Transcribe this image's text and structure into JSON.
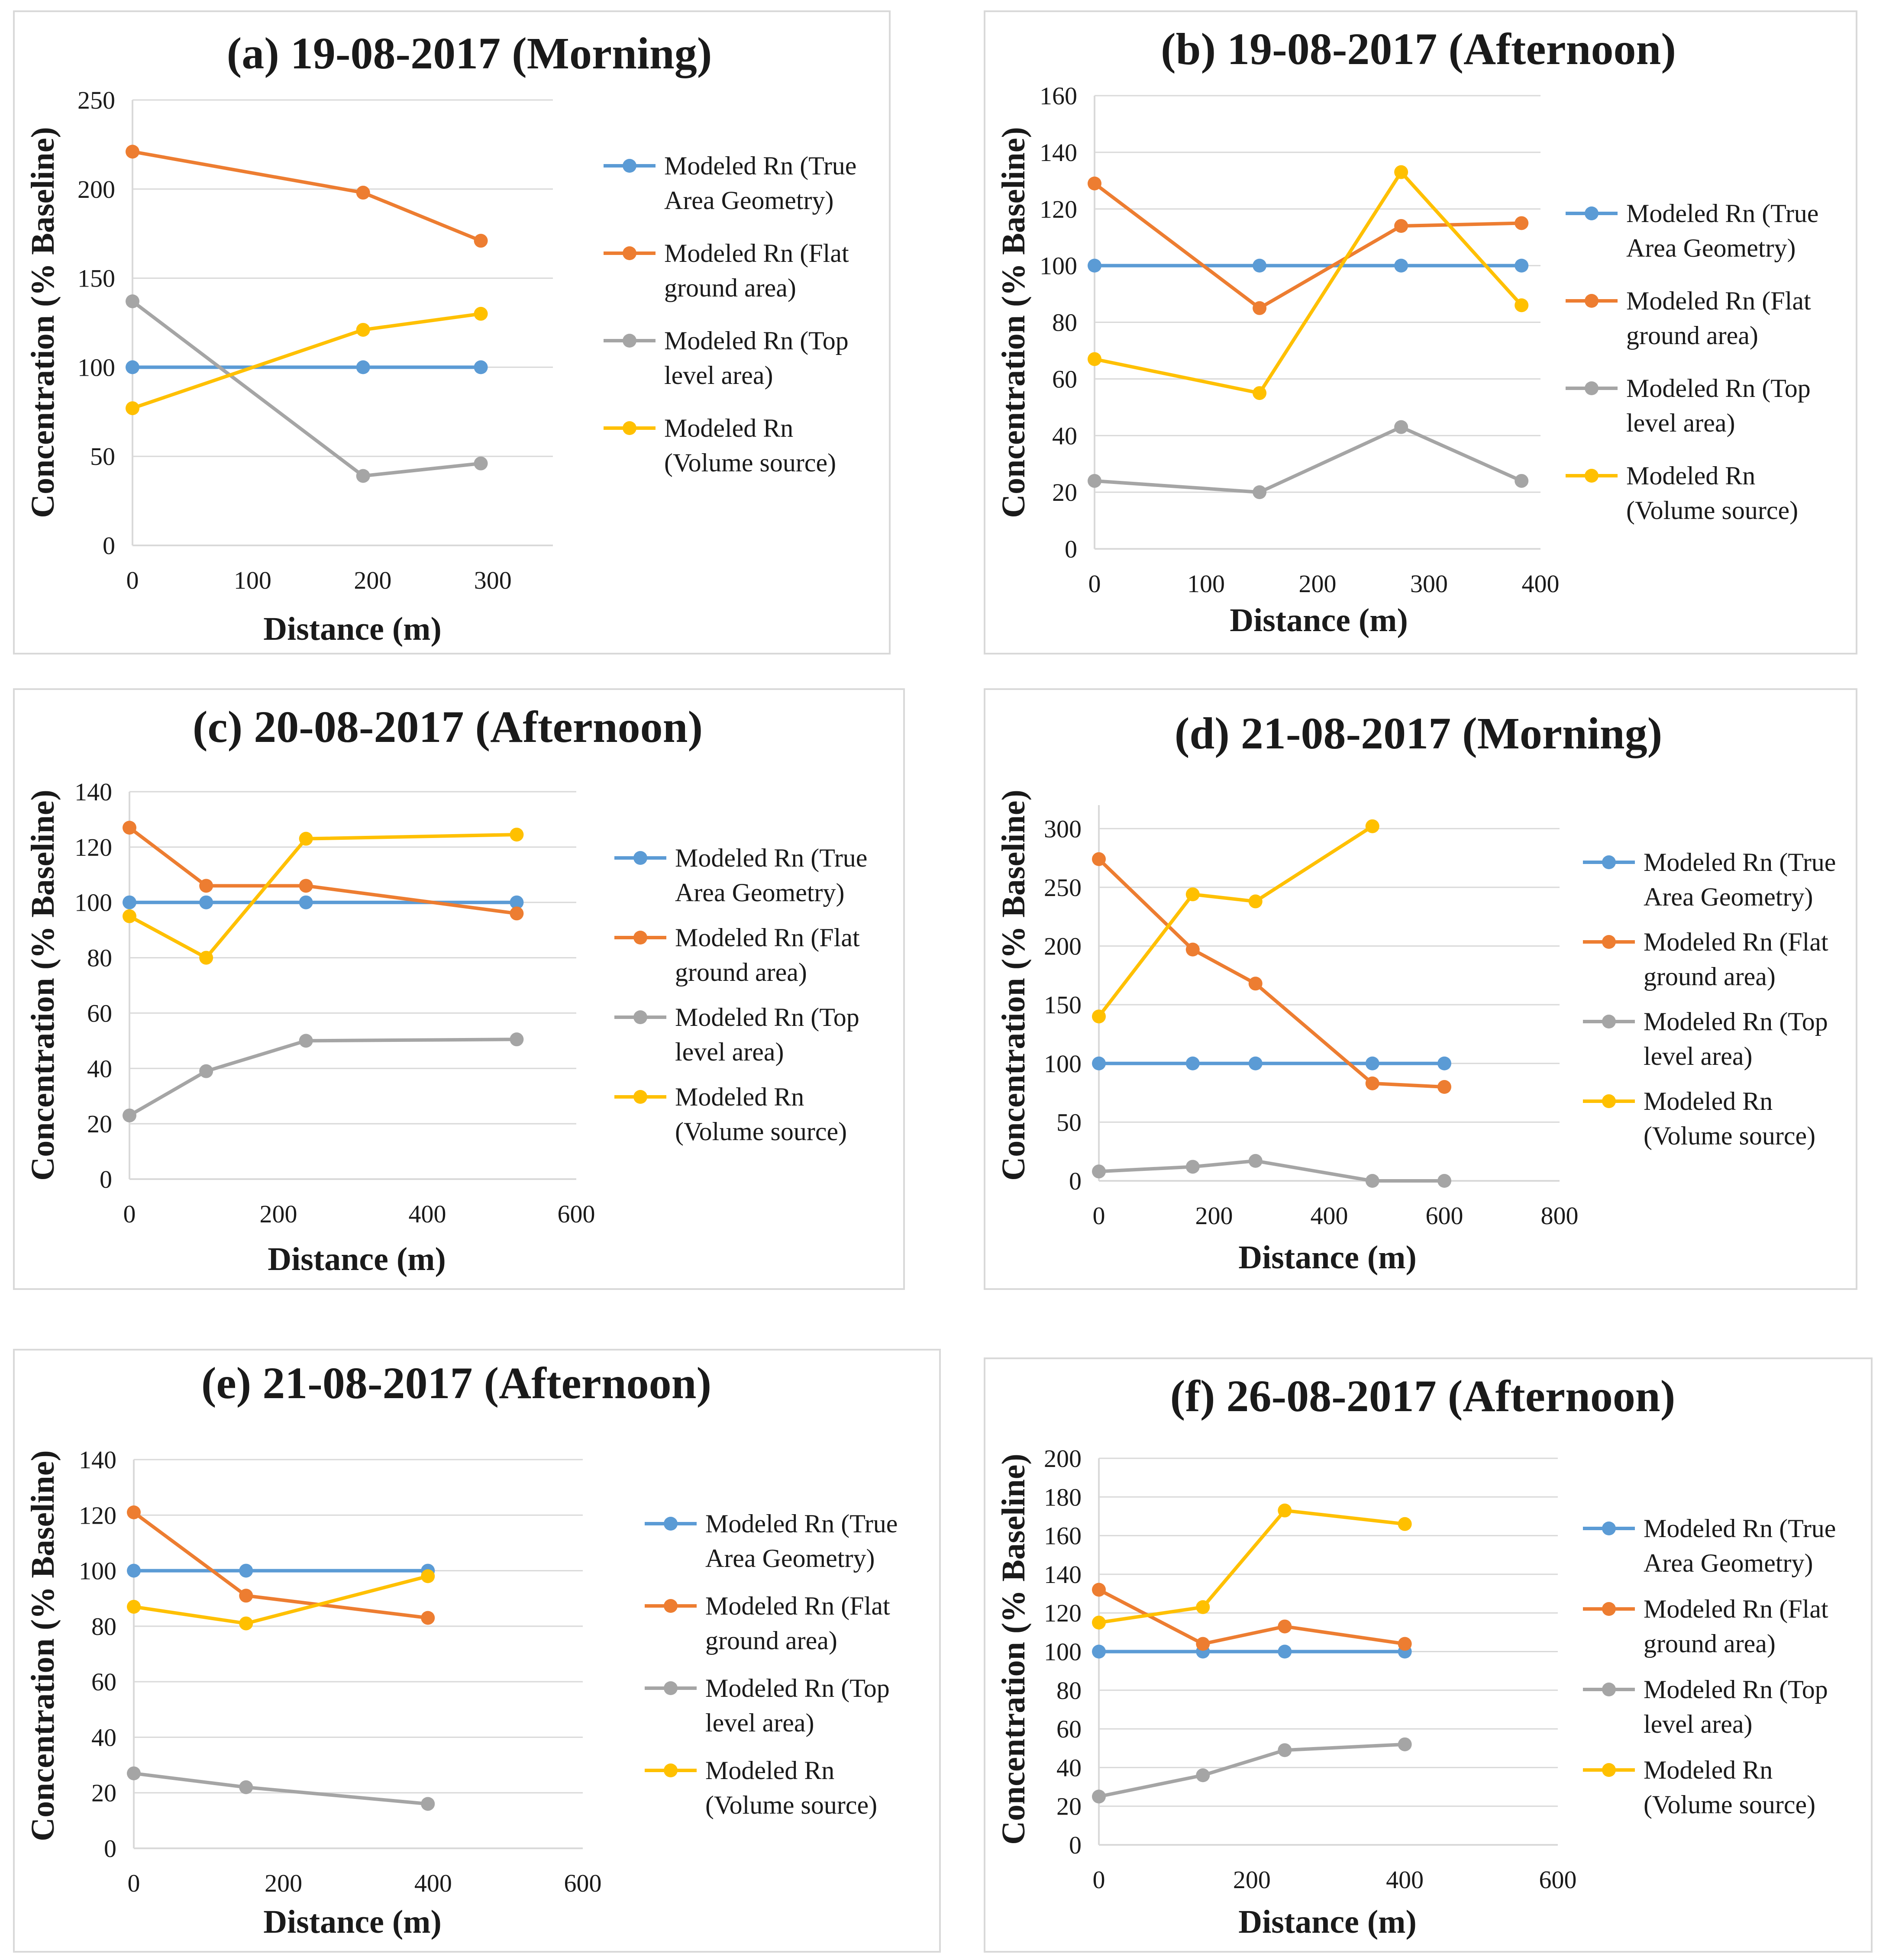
{
  "colors": {
    "Modeled Rn (True Area Geometry)": "#5b9bd5",
    "Modeled Rn (Flat ground area)": "#ed7d31",
    "Modeled Rn (Top level area)": "#a5a5a5",
    "Modeled Rn (Volume source)": "#ffc000"
  },
  "legend_lines": [
    [
      "Modeled Rn (True",
      "Area Geometry)"
    ],
    [
      "Modeled Rn (Flat",
      "ground area)"
    ],
    [
      "Modeled Rn (Top",
      "level area)"
    ],
    [
      "Modeled Rn",
      "(Volume source)"
    ]
  ],
  "chart_data": [
    {
      "type": "line",
      "title": "(a) 19-08-2017 (Morning)",
      "xlabel": "Distance (m)",
      "ylabel": "Concentration (% Baseline)",
      "xlim": [
        0,
        350
      ],
      "xticks": [
        0,
        100,
        200,
        300
      ],
      "ylim": [
        0,
        250
      ],
      "yticks": [
        0,
        50,
        100,
        150,
        200,
        250
      ],
      "series": [
        {
          "name": "Modeled Rn (True Area Geometry)",
          "x": [
            0,
            192,
            290
          ],
          "y": [
            100,
            100,
            100
          ]
        },
        {
          "name": "Modeled Rn (Flat ground area)",
          "x": [
            0,
            192,
            290
          ],
          "y": [
            221,
            198,
            171
          ]
        },
        {
          "name": "Modeled Rn (Top level area)",
          "x": [
            0,
            192,
            290
          ],
          "y": [
            137,
            39,
            46
          ]
        },
        {
          "name": "Modeled Rn (Volume source)",
          "x": [
            0,
            192,
            290
          ],
          "y": [
            77,
            121,
            130
          ]
        }
      ]
    },
    {
      "type": "line",
      "title": "(b) 19-08-2017 (Afternoon)",
      "xlabel": "Distance (m)",
      "ylabel": "Concentration (% Baseline)",
      "xlim": [
        0,
        400
      ],
      "xticks": [
        0,
        100,
        200,
        300,
        400
      ],
      "ylim": [
        0,
        160
      ],
      "yticks": [
        0,
        20,
        40,
        60,
        80,
        100,
        120,
        140,
        160
      ],
      "series": [
        {
          "name": "Modeled Rn (True Area Geometry)",
          "x": [
            0,
            148,
            275,
            383
          ],
          "y": [
            100,
            100,
            100,
            100
          ]
        },
        {
          "name": "Modeled Rn (Flat ground area)",
          "x": [
            0,
            148,
            275,
            383
          ],
          "y": [
            129,
            85,
            114,
            115
          ]
        },
        {
          "name": "Modeled Rn (Top level area)",
          "x": [
            0,
            148,
            275,
            383
          ],
          "y": [
            24,
            20,
            43,
            24
          ]
        },
        {
          "name": "Modeled Rn (Volume source)",
          "x": [
            0,
            148,
            275,
            383
          ],
          "y": [
            67,
            55,
            133,
            86
          ]
        }
      ]
    },
    {
      "type": "line",
      "title": "(c) 20-08-2017 (Afternoon)",
      "xlabel": "Distance (m)",
      "ylabel": "Concentration (% Baseline)",
      "xlim": [
        0,
        600
      ],
      "xticks": [
        0,
        200,
        400,
        600
      ],
      "ylim": [
        0,
        140
      ],
      "yticks": [
        0,
        20,
        40,
        60,
        80,
        100,
        120,
        140
      ],
      "series": [
        {
          "name": "Modeled Rn (True Area Geometry)",
          "x": [
            0,
            103,
            237,
            520
          ],
          "y": [
            100,
            100,
            100,
            100
          ]
        },
        {
          "name": "Modeled Rn (Flat ground area)",
          "x": [
            0,
            103,
            237,
            520
          ],
          "y": [
            127,
            106,
            106,
            96
          ]
        },
        {
          "name": "Modeled Rn (Top level area)",
          "x": [
            0,
            103,
            237,
            520
          ],
          "y": [
            23,
            39,
            50,
            50.5
          ]
        },
        {
          "name": "Modeled Rn (Volume source)",
          "x": [
            0,
            103,
            237,
            520
          ],
          "y": [
            95,
            80,
            123,
            124.5
          ]
        }
      ]
    },
    {
      "type": "line",
      "title": "(d) 21-08-2017 (Morning)",
      "xlabel": "Distance (m)",
      "ylabel": "Concentration (% Baseline)",
      "xlim": [
        0,
        800
      ],
      "xticks": [
        0,
        200,
        400,
        600,
        800
      ],
      "ylim": [
        0,
        320
      ],
      "yticks": [
        0,
        50,
        100,
        150,
        200,
        250,
        300
      ],
      "series": [
        {
          "name": "Modeled Rn (True Area Geometry)",
          "x": [
            0,
            163,
            272,
            475,
            600
          ],
          "y": [
            100,
            100,
            100,
            100,
            100
          ]
        },
        {
          "name": "Modeled Rn (Flat ground area)",
          "x": [
            0,
            163,
            272,
            475,
            600
          ],
          "y": [
            274,
            197,
            168,
            83,
            80
          ]
        },
        {
          "name": "Modeled Rn (Top level area)",
          "x": [
            0,
            163,
            272,
            475,
            600
          ],
          "y": [
            8,
            12,
            17,
            0,
            0
          ]
        },
        {
          "name": "Modeled Rn (Volume source)",
          "x": [
            0,
            163,
            272,
            475
          ],
          "y": [
            140,
            244,
            238,
            302
          ]
        }
      ]
    },
    {
      "type": "line",
      "title": "(e) 21-08-2017 (Afternoon)",
      "xlabel": "Distance (m)",
      "ylabel": "Concentration (% Baseline)",
      "xlim": [
        0,
        600
      ],
      "xticks": [
        0,
        200,
        400,
        600
      ],
      "ylim": [
        0,
        140
      ],
      "yticks": [
        0,
        20,
        40,
        60,
        80,
        100,
        120,
        140
      ],
      "series": [
        {
          "name": "Modeled Rn (True Area Geometry)",
          "x": [
            0,
            150,
            393
          ],
          "y": [
            100,
            100,
            100
          ]
        },
        {
          "name": "Modeled Rn (Flat ground area)",
          "x": [
            0,
            150,
            393
          ],
          "y": [
            121,
            91,
            83
          ]
        },
        {
          "name": "Modeled Rn (Top level area)",
          "x": [
            0,
            150,
            393
          ],
          "y": [
            27,
            22,
            16
          ]
        },
        {
          "name": "Modeled Rn (Volume source)",
          "x": [
            0,
            150,
            393
          ],
          "y": [
            87,
            81,
            98
          ]
        }
      ]
    },
    {
      "type": "line",
      "title": "(f) 26-08-2017 (Afternoon)",
      "xlabel": "Distance (m)",
      "ylabel": "Concentration (% Baseline)",
      "xlim": [
        0,
        600
      ],
      "xticks": [
        0,
        200,
        400,
        600
      ],
      "ylim": [
        0,
        200
      ],
      "yticks": [
        0,
        20,
        40,
        60,
        80,
        100,
        120,
        140,
        160,
        180,
        200
      ],
      "series": [
        {
          "name": "Modeled Rn (True Area Geometry)",
          "x": [
            0,
            136,
            243,
            400
          ],
          "y": [
            100,
            100,
            100,
            100
          ]
        },
        {
          "name": "Modeled Rn (Flat ground area)",
          "x": [
            0,
            136,
            243,
            400
          ],
          "y": [
            132,
            104,
            113,
            104
          ]
        },
        {
          "name": "Modeled Rn (Top level area)",
          "x": [
            0,
            136,
            243,
            400
          ],
          "y": [
            25,
            36,
            49,
            52
          ]
        },
        {
          "name": "Modeled Rn (Volume source)",
          "x": [
            0,
            136,
            243,
            400
          ],
          "y": [
            115,
            123,
            173,
            166
          ]
        }
      ]
    }
  ]
}
